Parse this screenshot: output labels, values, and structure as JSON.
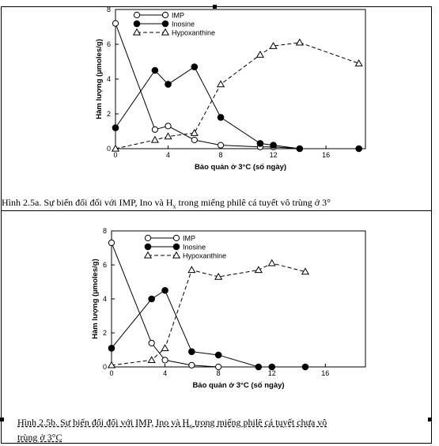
{
  "figures": [
    {
      "caption": "Hình 2.5a. Sự biến đổi đối với IMP, Ino và H",
      "caption_sub": "x",
      "caption_tail": " trong miếng philê cá tuyết vô trùng ở 3°",
      "chart_data": {
        "type": "line",
        "xlabel": "Bảo quản ở 3°C (số ngày)",
        "ylabel": "Hàm lượng (µmoles/g)",
        "xlim": [
          0,
          19
        ],
        "ylim": [
          0,
          8
        ],
        "xticks": [
          0,
          4,
          8,
          12,
          16
        ],
        "yticks": [
          0,
          2,
          4,
          6,
          8
        ],
        "legend_position": "top",
        "series": [
          {
            "name": "IMP",
            "marker": "open-circle",
            "line": "solid",
            "x": [
              0,
              3,
              4,
              6,
              8,
              11,
              12,
              14
            ],
            "y": [
              7.2,
              1.1,
              1.3,
              0.5,
              0.2,
              0.1,
              0.1,
              0.0
            ]
          },
          {
            "name": "Inosine",
            "marker": "filled-circle",
            "line": "solid",
            "x": [
              0,
              3,
              4,
              6,
              8,
              11,
              12,
              14,
              18.5
            ],
            "y": [
              1.2,
              4.5,
              3.7,
              4.7,
              1.8,
              0.3,
              0.2,
              0.0,
              0.0
            ]
          },
          {
            "name": "Hypoxanthine",
            "marker": "open-triangle",
            "line": "dashed",
            "x": [
              0,
              3,
              4,
              6,
              8,
              11,
              12,
              14,
              18.5
            ],
            "y": [
              0.0,
              0.5,
              0.7,
              0.9,
              3.7,
              5.4,
              5.9,
              6.1,
              4.9
            ]
          }
        ]
      }
    },
    {
      "caption": "Hình 2.5b. Sự biến đổi đối với IMP, Ino và H",
      "caption_sub": "x",
      "caption_tail": " trong miếng philê cá tuyết chưa vô",
      "caption_line2": "trùng ở 3°C",
      "chart_data": {
        "type": "line",
        "xlabel": "Bảo quản ở 3°C (số ngày)",
        "ylabel": "Hàm lượng (µmoles/g)",
        "xlim": [
          0,
          19
        ],
        "ylim": [
          0,
          8
        ],
        "xticks": [
          0,
          4,
          8,
          12,
          16
        ],
        "yticks": [
          0,
          2,
          4,
          6,
          8
        ],
        "legend_position": "top",
        "series": [
          {
            "name": "IMP",
            "marker": "open-circle",
            "line": "solid",
            "x": [
              0,
              3,
              4,
              6,
              8
            ],
            "y": [
              7.3,
              1.4,
              0.4,
              0.1,
              0.0
            ]
          },
          {
            "name": "Inosine",
            "marker": "filled-circle",
            "line": "solid",
            "x": [
              0,
              3,
              4,
              6,
              8,
              11,
              12,
              14.5
            ],
            "y": [
              1.1,
              4.0,
              4.5,
              0.9,
              0.7,
              0.0,
              0.0,
              0.0
            ]
          },
          {
            "name": "Hypoxanthine",
            "marker": "open-triangle",
            "line": "dashed",
            "x": [
              0,
              3,
              4,
              6,
              8,
              11,
              12,
              14.5
            ],
            "y": [
              0.1,
              0.4,
              1.1,
              5.7,
              5.3,
              5.7,
              6.1,
              5.6
            ]
          }
        ]
      }
    }
  ]
}
